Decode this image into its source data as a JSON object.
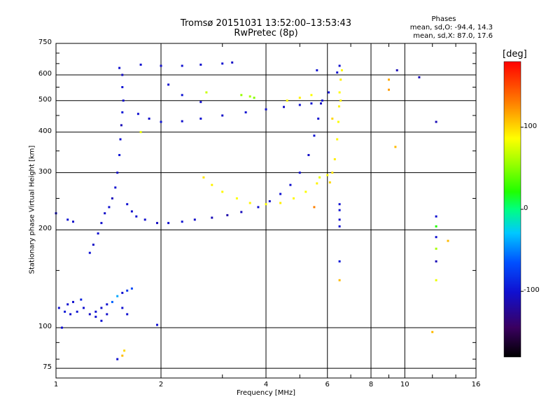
{
  "chart_data": {
    "type": "scatter",
    "title": "Tromsø 20151031 13:52:00–13:53:43",
    "subtitle": "RwPretec (8p)",
    "xlabel": "Frequency [MHz]",
    "ylabel": "Stationary phase Virtual Height [km]",
    "x_scale": "log",
    "y_scale": "log",
    "xlim": [
      1,
      16
    ],
    "ylim": [
      70,
      750
    ],
    "x_ticks": [
      1,
      2,
      4,
      6,
      8,
      10,
      16
    ],
    "x_tick_labels": [
      "1",
      "2",
      "4",
      "6",
      "8",
      "10",
      "16"
    ],
    "y_ticks": [
      75,
      100,
      200,
      300,
      400,
      500,
      600,
      750
    ],
    "y_tick_labels": [
      "75",
      "100",
      "200",
      "300",
      "400",
      "500",
      "600",
      "750"
    ],
    "grid": true,
    "phases": {
      "header": "Phases",
      "line1": "mean, sd,O: -94.4, 14.3",
      "line2": "mean, sd,X:  87.0, 17.6"
    },
    "colorbar": {
      "label": "[deg]",
      "ticks": [
        -100,
        0,
        100
      ],
      "tick_labels": [
        "-100",
        "0",
        "100"
      ],
      "range": [
        -180,
        180
      ]
    },
    "series": [
      {
        "name": "O-mode trace",
        "points": [
          [
            1.52,
            630,
            -100
          ],
          [
            1.55,
            600,
            -105
          ],
          [
            1.55,
            550,
            -98
          ],
          [
            1.56,
            500,
            -102
          ],
          [
            1.55,
            460,
            -95
          ],
          [
            1.54,
            420,
            -110
          ],
          [
            1.53,
            380,
            -100
          ],
          [
            1.52,
            340,
            -96
          ],
          [
            1.5,
            300,
            -104
          ],
          [
            1.48,
            270,
            -100
          ],
          [
            1.45,
            250,
            -108
          ],
          [
            1.42,
            235,
            -99
          ],
          [
            1.38,
            225,
            -103
          ],
          [
            1.35,
            210,
            -101
          ],
          [
            1.32,
            195,
            -100
          ],
          [
            1.28,
            180,
            -104
          ],
          [
            1.25,
            170,
            -98
          ],
          [
            1.6,
            240,
            -100
          ],
          [
            1.65,
            228,
            -102
          ],
          [
            1.7,
            220,
            -99
          ],
          [
            1.8,
            215,
            -101
          ],
          [
            1.95,
            210,
            -105
          ],
          [
            2.1,
            210,
            -100
          ],
          [
            2.3,
            212,
            -98
          ],
          [
            2.5,
            215,
            -103
          ],
          [
            2.8,
            218,
            -110
          ],
          [
            3.1,
            222,
            -115
          ],
          [
            3.4,
            227,
            -108
          ],
          [
            3.8,
            235,
            -100
          ],
          [
            4.1,
            245,
            -102
          ],
          [
            4.4,
            258,
            -99
          ],
          [
            4.7,
            275,
            -101
          ],
          [
            5.0,
            300,
            -100
          ],
          [
            5.3,
            340,
            -103
          ],
          [
            5.5,
            390,
            -98
          ],
          [
            5.65,
            440,
            -100
          ],
          [
            5.75,
            490,
            -104
          ],
          [
            1.72,
            455,
            -100
          ],
          [
            1.85,
            440,
            -102
          ],
          [
            2.0,
            430,
            -98
          ],
          [
            2.3,
            432,
            -101
          ],
          [
            2.6,
            440,
            -100
          ],
          [
            3.0,
            450,
            -103
          ],
          [
            3.5,
            460,
            -99
          ],
          [
            4.0,
            470,
            -101
          ],
          [
            4.5,
            478,
            -104
          ],
          [
            5.0,
            485,
            -100
          ],
          [
            5.4,
            490,
            -98
          ],
          [
            5.8,
            500,
            -102
          ],
          [
            6.05,
            530,
            -100
          ],
          [
            1.75,
            645,
            -100
          ],
          [
            2.0,
            640,
            -103
          ],
          [
            2.3,
            640,
            -99
          ],
          [
            2.6,
            645,
            -101
          ],
          [
            3.0,
            650,
            -100
          ],
          [
            3.2,
            655,
            -104
          ],
          [
            2.1,
            560,
            -100
          ],
          [
            2.3,
            520,
            -98
          ],
          [
            2.6,
            495,
            -102
          ],
          [
            6.4,
            610,
            -100
          ],
          [
            6.5,
            640,
            -101
          ],
          [
            5.6,
            620,
            -99
          ]
        ]
      },
      {
        "name": "X-mode trace",
        "points": [
          [
            2.65,
            290,
            95
          ],
          [
            2.8,
            275,
            90
          ],
          [
            3.0,
            262,
            88
          ],
          [
            3.3,
            250,
            85
          ],
          [
            3.6,
            242,
            90
          ],
          [
            4.0,
            240,
            87
          ],
          [
            4.4,
            242,
            92
          ],
          [
            4.8,
            250,
            88
          ],
          [
            5.2,
            262,
            85
          ],
          [
            5.6,
            278,
            90
          ],
          [
            6.0,
            295,
            87
          ],
          [
            6.3,
            330,
            92
          ],
          [
            6.4,
            380,
            88
          ],
          [
            6.45,
            430,
            85
          ],
          [
            6.48,
            480,
            90
          ],
          [
            6.5,
            530,
            87
          ],
          [
            6.55,
            580,
            92
          ],
          [
            6.6,
            620,
            88
          ],
          [
            6.1,
            280,
            100
          ],
          [
            6.2,
            300,
            95
          ],
          [
            5.7,
            290,
            80
          ],
          [
            4.6,
            500,
            88
          ],
          [
            5.0,
            510,
            92
          ],
          [
            5.4,
            520,
            85
          ],
          [
            2.7,
            530,
            70
          ],
          [
            3.4,
            520,
            55
          ],
          [
            3.6,
            515,
            60
          ],
          [
            3.7,
            510,
            50
          ],
          [
            6.55,
            500,
            90
          ],
          [
            1.75,
            400,
            80
          ],
          [
            9.4,
            360,
            110
          ],
          [
            9.0,
            540,
            120
          ],
          [
            9.0,
            580,
            115
          ]
        ]
      },
      {
        "name": "Low-height echoes",
        "points": [
          [
            1.02,
            115,
            -100
          ],
          [
            1.06,
            112,
            -95
          ],
          [
            1.1,
            110,
            -102
          ],
          [
            1.15,
            112,
            -98
          ],
          [
            1.2,
            115,
            -100
          ],
          [
            1.25,
            110,
            -105
          ],
          [
            1.3,
            112,
            -99
          ],
          [
            1.35,
            115,
            -101
          ],
          [
            1.4,
            118,
            -100
          ],
          [
            1.45,
            120,
            -60
          ],
          [
            1.5,
            125,
            -40
          ],
          [
            1.55,
            128,
            -100
          ],
          [
            1.6,
            130,
            -80
          ],
          [
            1.65,
            132,
            -70
          ],
          [
            1.3,
            108,
            -100
          ],
          [
            1.35,
            105,
            -98
          ],
          [
            1.4,
            110,
            -102
          ],
          [
            1.55,
            115,
            -100
          ],
          [
            1.12,
            120,
            -100
          ],
          [
            1.18,
            122,
            -90
          ],
          [
            1.08,
            118,
            -100
          ],
          [
            1.6,
            110,
            -100
          ],
          [
            1.55,
            82,
            110
          ],
          [
            1.5,
            80,
            -100
          ],
          [
            1.57,
            85,
            100
          ],
          [
            1.95,
            102,
            -100
          ],
          [
            1.04,
            100,
            -100
          ],
          [
            1.0,
            225,
            -100
          ],
          [
            1.08,
            215,
            -98
          ],
          [
            1.12,
            212,
            -102
          ]
        ]
      },
      {
        "name": "Isolated echoes",
        "points": [
          [
            6.5,
            240,
            -100
          ],
          [
            6.5,
            230,
            -98
          ],
          [
            6.5,
            215,
            -102
          ],
          [
            6.5,
            205,
            -100
          ],
          [
            6.5,
            160,
            -95
          ],
          [
            6.5,
            140,
            110
          ],
          [
            12.3,
            220,
            -100
          ],
          [
            12.3,
            205,
            20
          ],
          [
            12.3,
            190,
            -100
          ],
          [
            12.3,
            175,
            60
          ],
          [
            12.3,
            160,
            -110
          ],
          [
            12.3,
            140,
            80
          ],
          [
            12.0,
            97,
            110
          ],
          [
            13.3,
            185,
            110
          ],
          [
            12.3,
            430,
            -110
          ],
          [
            11.0,
            590,
            -110
          ],
          [
            9.5,
            620,
            -110
          ],
          [
            6.2,
            440,
            100
          ],
          [
            5.5,
            235,
            130
          ]
        ]
      }
    ]
  }
}
